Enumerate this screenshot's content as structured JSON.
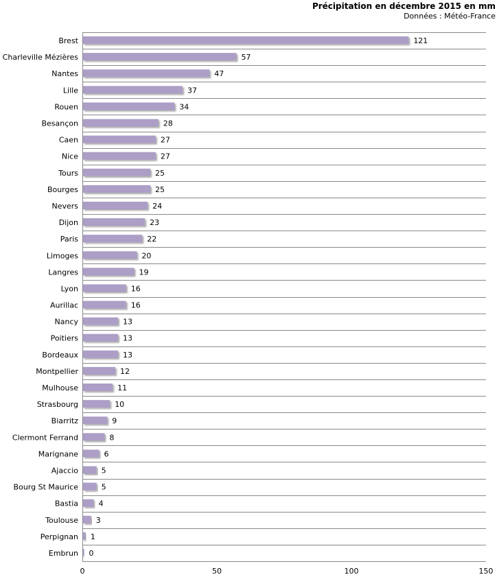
{
  "chart_data": {
    "type": "bar",
    "orientation": "horizontal",
    "title": "Précipitation en décembre 2015 en mm",
    "subtitle": "Données : Météo-France",
    "xlabel": "",
    "ylabel": "",
    "xlim": [
      0,
      150
    ],
    "x_ticks": [
      "0",
      "50",
      "100",
      "150"
    ],
    "grid": true,
    "bar_color": "#ac9ec6",
    "categories": [
      "Brest",
      "Charleville Mézières",
      "Nantes",
      "Lille",
      "Rouen",
      "Besançon",
      "Caen",
      "Nice",
      "Tours",
      "Bourges",
      "Nevers",
      "Dijon",
      "Paris",
      "Limoges",
      "Langres",
      "Lyon",
      "Aurillac",
      "Nancy",
      "Poitiers",
      "Bordeaux",
      "Montpellier",
      "Mulhouse",
      "Strasbourg",
      "Biarritz",
      "Clermont Ferrand",
      "Marignane",
      "Ajaccio",
      "Bourg St Maurice",
      "Bastia",
      "Toulouse",
      "Perpignan",
      "Embrun"
    ],
    "values": [
      121,
      57,
      47,
      37,
      34,
      28,
      27,
      27,
      25,
      25,
      24,
      23,
      22,
      20,
      19,
      16,
      16,
      13,
      13,
      13,
      12,
      11,
      10,
      9,
      8,
      6,
      5,
      5,
      4,
      3,
      1,
      0
    ]
  }
}
